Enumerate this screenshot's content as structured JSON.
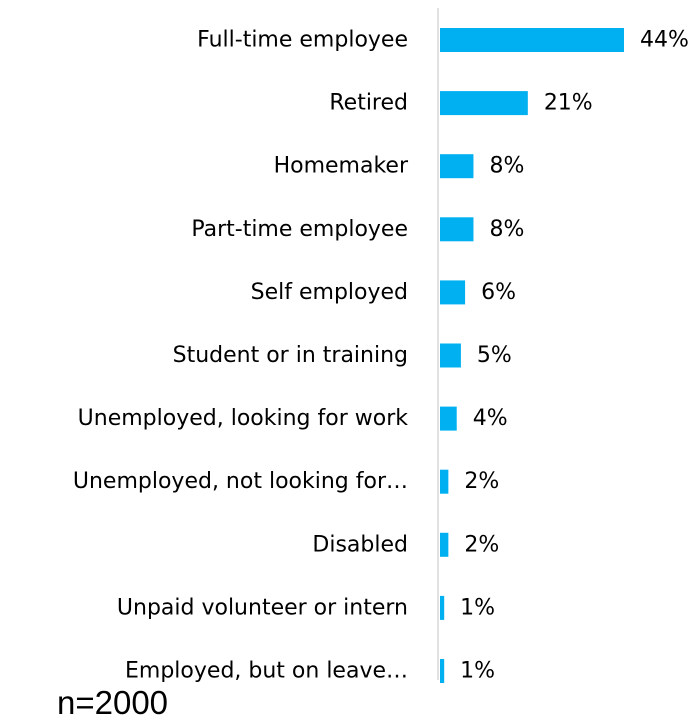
{
  "chart_data": {
    "type": "bar",
    "orientation": "horizontal",
    "categories": [
      "Full-time employee",
      "Retired",
      "Homemaker",
      "Part-time employee",
      "Self employed",
      "Student or in training",
      "Unemployed, looking for work",
      "Unemployed, not looking for…",
      "Disabled",
      "Unpaid volunteer or intern",
      "Employed, but on leave…"
    ],
    "values": [
      44,
      21,
      8,
      8,
      6,
      5,
      4,
      2,
      2,
      1,
      1
    ],
    "value_labels": [
      "44%",
      "21%",
      "8%",
      "8%",
      "6%",
      "5%",
      "4%",
      "2%",
      "2%",
      "1%",
      "1%"
    ],
    "bar_color": "#00B0F0",
    "axis_color": "#D9D9D9",
    "grid": false,
    "legend": "none"
  },
  "note": "n=2000"
}
